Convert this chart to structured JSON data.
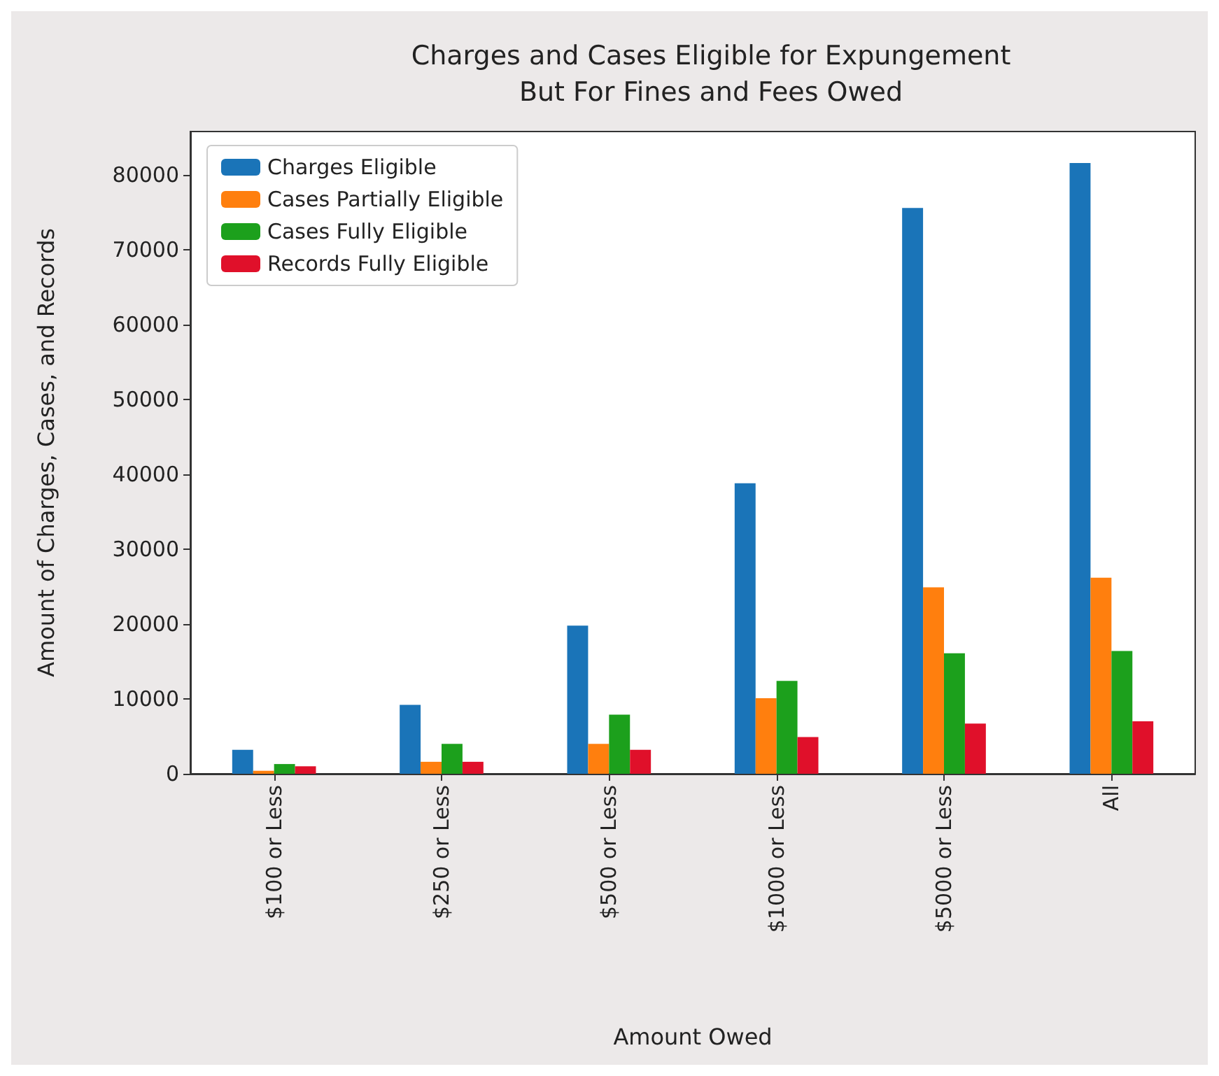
{
  "chart_data": {
    "type": "bar",
    "title": "Charges and Cases Eligible for Expungement\nBut For Fines and Fees Owed",
    "xlabel": "Amount Owed",
    "ylabel": "Amount of Charges, Cases, and Records",
    "categories": [
      "$100 or Less",
      "$250 or Less",
      "$500 or Less",
      "$1000 or Less",
      "$5000 or Less",
      "All"
    ],
    "series": [
      {
        "name": "Charges Eligible",
        "color": "#1a74b8",
        "values": [
          3200,
          9200,
          19800,
          38800,
          75600,
          81600
        ]
      },
      {
        "name": "Cases Partially Eligible",
        "color": "#ff7f0e",
        "values": [
          400,
          1600,
          4000,
          10100,
          24900,
          26200
        ]
      },
      {
        "name": "Cases Fully Eligible",
        "color": "#1ca01c",
        "values": [
          1300,
          4000,
          7900,
          12400,
          16100,
          16400
        ]
      },
      {
        "name": "Records Fully Eligible",
        "color": "#e0102a",
        "values": [
          1000,
          1600,
          3200,
          4900,
          6700,
          7000
        ]
      }
    ],
    "ylim": [
      0,
      85800
    ],
    "yticks": [
      0,
      10000,
      20000,
      30000,
      40000,
      50000,
      60000,
      70000,
      80000
    ],
    "grid": false,
    "legend": "top left"
  }
}
